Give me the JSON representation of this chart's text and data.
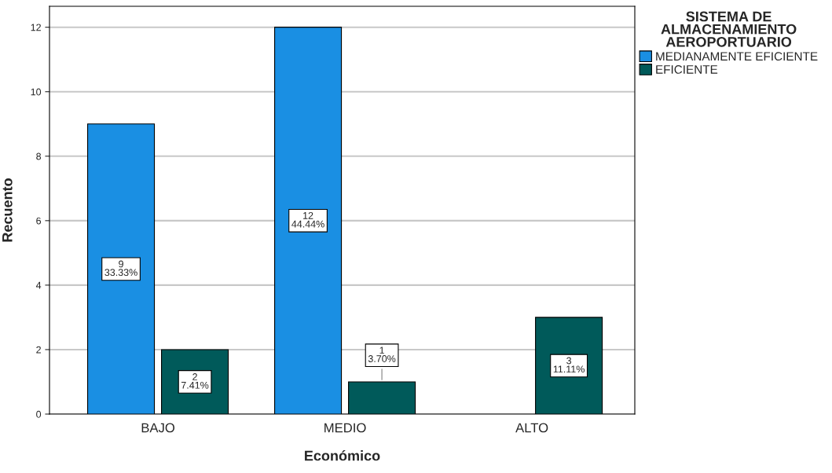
{
  "chart_data": {
    "type": "bar",
    "xlabel": "Económico",
    "ylabel": "Recuento",
    "legend_title": "SISTEMA DE\nALMACENAMIENTO\nAEROPORTUARIO",
    "categories": [
      "BAJO",
      "MEDIO",
      "ALTO"
    ],
    "series": [
      {
        "name": "MEDIANAMENTE EFICIENTE",
        "color": "#1a8fe3",
        "values": [
          9,
          12,
          null
        ],
        "value_labels": [
          "9\n33.33%",
          "12\n44.44%",
          null
        ]
      },
      {
        "name": "EFICIENTE",
        "color": "#005a5a",
        "values": [
          2,
          1,
          3
        ],
        "value_labels": [
          "2\n7.41%",
          "1\n3.70%",
          "3\n11.11%"
        ]
      }
    ],
    "ylim": [
      0,
      12.65
    ],
    "yticks": [
      0,
      2,
      4,
      6,
      8,
      10,
      12
    ],
    "grid": "y",
    "legend": "top right"
  }
}
